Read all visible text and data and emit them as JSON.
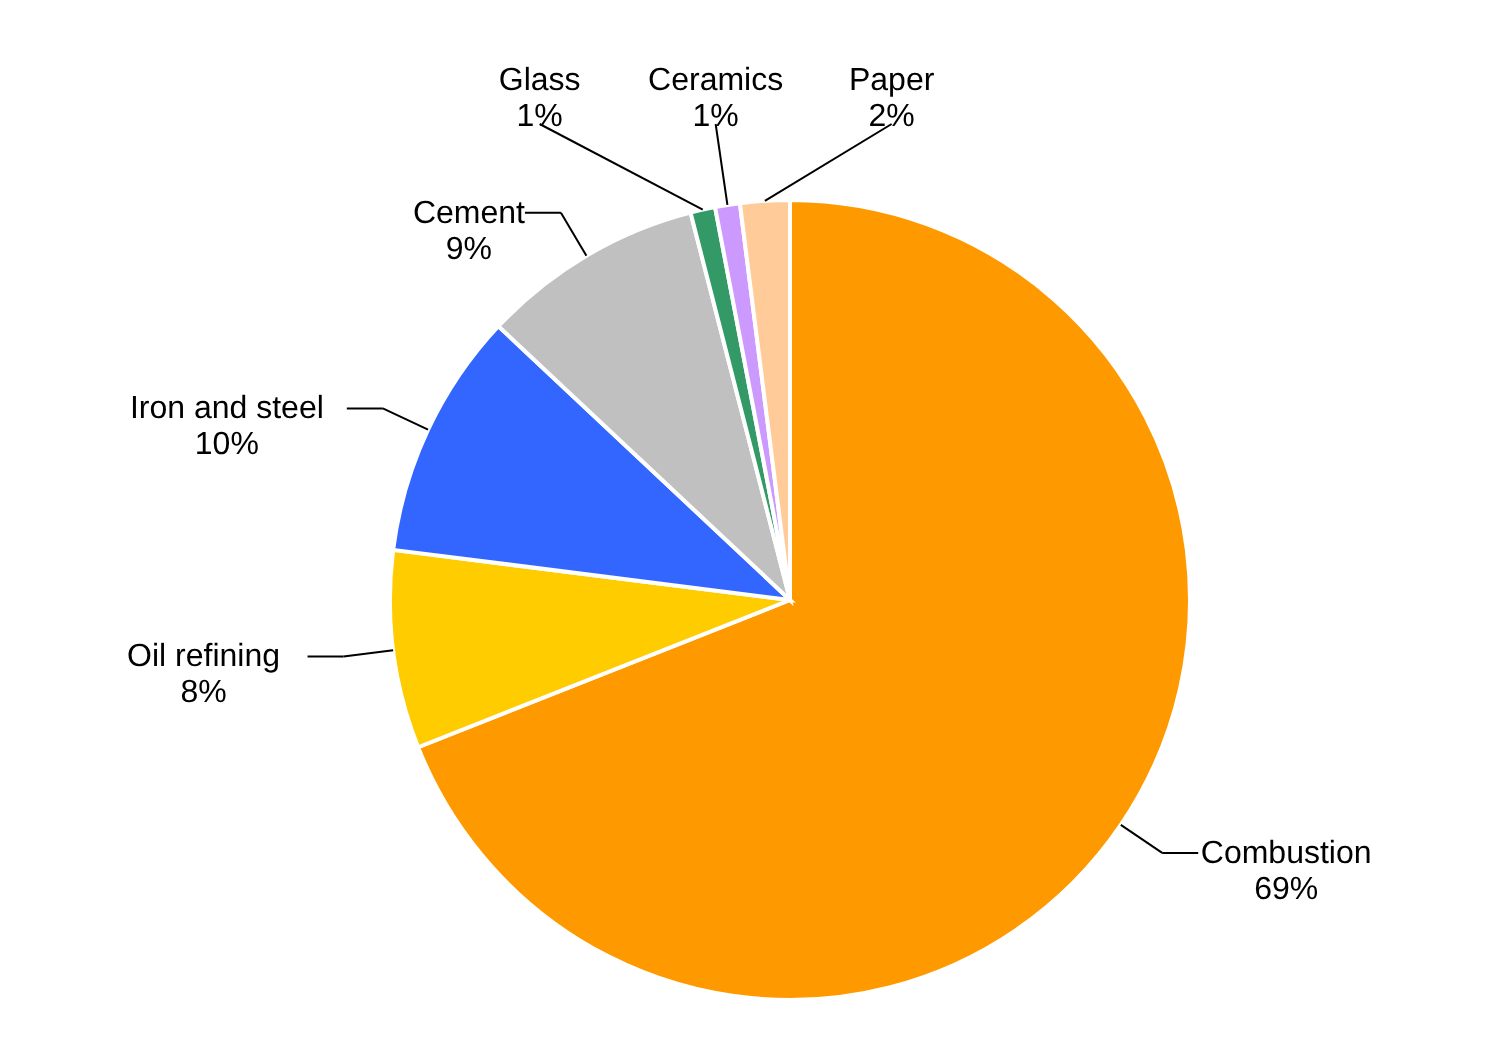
{
  "chart_data": {
    "type": "pie",
    "categories": [
      "Combustion",
      "Oil refining",
      "Iron and steel",
      "Cement",
      "Glass",
      "Ceramics",
      "Paper"
    ],
    "values": [
      69,
      8,
      10,
      9,
      1,
      1,
      2
    ],
    "value_labels": [
      "69%",
      "8%",
      "10%",
      "9%",
      "1%",
      "1%",
      "2%"
    ],
    "colors": [
      "#ff9900",
      "#ffcc00",
      "#3366ff",
      "#c0c0c0",
      "#339966",
      "#cc99ff",
      "#ffcc99"
    ]
  }
}
